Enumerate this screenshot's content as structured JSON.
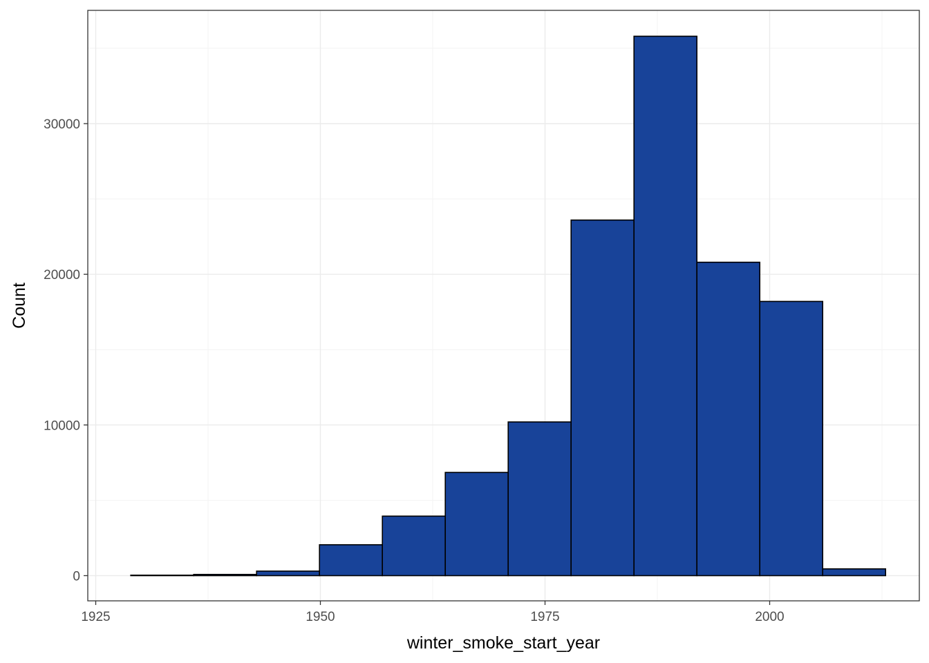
{
  "chart_data": {
    "type": "bar",
    "subtype": "histogram",
    "title": "",
    "xlabel": "winter_smoke_start_year",
    "ylabel": "Count",
    "xlim": [
      1925,
      2015
    ],
    "ylim": [
      0,
      35800
    ],
    "x_ticks": [
      1925,
      1950,
      1975,
      2000
    ],
    "y_ticks": [
      0,
      10000,
      20000,
      30000
    ],
    "grid": true,
    "bins": [
      {
        "x0": 1928.9,
        "x1": 1935.9,
        "count": 30
      },
      {
        "x0": 1935.9,
        "x1": 1942.9,
        "count": 80
      },
      {
        "x0": 1942.9,
        "x1": 1949.9,
        "count": 300
      },
      {
        "x0": 1949.9,
        "x1": 1956.9,
        "count": 2050
      },
      {
        "x0": 1956.9,
        "x1": 1963.9,
        "count": 3950
      },
      {
        "x0": 1963.9,
        "x1": 1970.9,
        "count": 6850
      },
      {
        "x0": 1970.9,
        "x1": 1977.9,
        "count": 10200
      },
      {
        "x0": 1977.9,
        "x1": 1984.9,
        "count": 23600
      },
      {
        "x0": 1984.9,
        "x1": 1991.9,
        "count": 35800
      },
      {
        "x0": 1991.9,
        "x1": 1998.9,
        "count": 20800
      },
      {
        "x0": 1998.9,
        "x1": 2005.9,
        "count": 18200
      },
      {
        "x0": 2005.9,
        "x1": 2012.9,
        "count": 450
      }
    ],
    "colors": {
      "bar_fill": "#184399",
      "bar_stroke": "#000000",
      "grid": "#ebebeb",
      "panel_border": "#333333"
    }
  }
}
